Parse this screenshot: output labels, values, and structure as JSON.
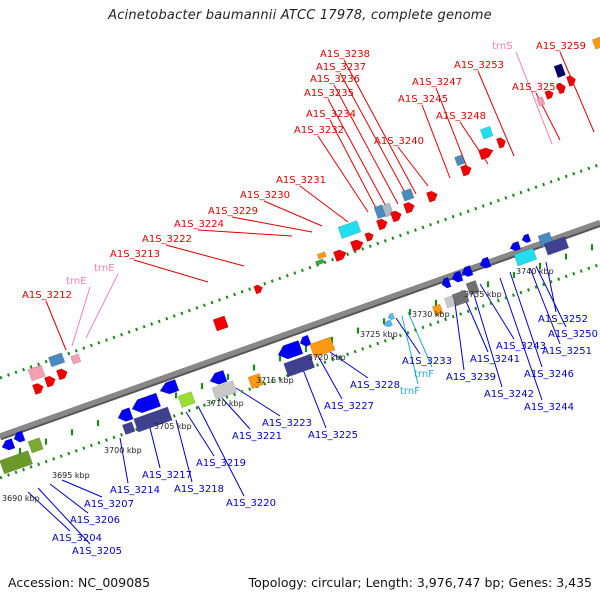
{
  "title": "Acinetobacter baumannii ATCC 17978, complete genome",
  "footer": {
    "accession": "Accession: NC_009085",
    "topology": "Topology: circular; Length: 3,976,747 bp; Genes: 3,435"
  },
  "colors": {
    "top_strand_label": "#e00000",
    "trna_label": "#f080b0",
    "bottom_label": "#0000cc",
    "trna_bottom_label": "#22aacc",
    "backbone": "#888888",
    "tick": "#1a8a1a"
  },
  "scale_labels": [
    {
      "text": "3690 kbp"
    },
    {
      "text": "3695 kbp"
    },
    {
      "text": "3700 kbp"
    },
    {
      "text": "3705 kbp"
    },
    {
      "text": "3710 kbp"
    },
    {
      "text": "3715 kbp"
    },
    {
      "text": "3720 kbp"
    },
    {
      "text": "3725 kbp"
    },
    {
      "text": "3730 kbp"
    },
    {
      "text": "3735 kbp"
    },
    {
      "text": "3740 kbp"
    }
  ],
  "top_labels": [
    {
      "text": "A1S_3212"
    },
    {
      "text": "trnE"
    },
    {
      "text": "trnE"
    },
    {
      "text": "A1S_3213"
    },
    {
      "text": "A1S_3222"
    },
    {
      "text": "A1S_3224"
    },
    {
      "text": "A1S_3229"
    },
    {
      "text": "A1S_3230"
    },
    {
      "text": "A1S_3231"
    },
    {
      "text": "A1S_3232"
    },
    {
      "text": "A1S_3234"
    },
    {
      "text": "A1S_3235"
    },
    {
      "text": "A1S_3236"
    },
    {
      "text": "A1S_3237"
    },
    {
      "text": "A1S_3238"
    },
    {
      "text": "A1S_3240"
    },
    {
      "text": "A1S_3245"
    },
    {
      "text": "A1S_3247"
    },
    {
      "text": "A1S_3248"
    },
    {
      "text": "A1S_3253"
    },
    {
      "text": "trnS"
    },
    {
      "text": "A1S_3256"
    },
    {
      "text": "A1S_3259"
    }
  ],
  "bottom_labels": [
    {
      "text": "A1S_3204"
    },
    {
      "text": "A1S_3205"
    },
    {
      "text": "A1S_3206"
    },
    {
      "text": "A1S_3207"
    },
    {
      "text": "A1S_3214"
    },
    {
      "text": "A1S_3217"
    },
    {
      "text": "A1S_3218"
    },
    {
      "text": "A1S_3219"
    },
    {
      "text": "A1S_3220"
    },
    {
      "text": "A1S_3221"
    },
    {
      "text": "A1S_3223"
    },
    {
      "text": "A1S_3225"
    },
    {
      "text": "A1S_3227"
    },
    {
      "text": "A1S_3228"
    },
    {
      "text": "trnF"
    },
    {
      "text": "trnF"
    },
    {
      "text": "A1S_3233"
    },
    {
      "text": "A1S_3239"
    },
    {
      "text": "A1S_3241"
    },
    {
      "text": "A1S_3242"
    },
    {
      "text": "A1S_3243"
    },
    {
      "text": "A1S_3244"
    },
    {
      "text": "A1S_3246"
    },
    {
      "text": "A1S_3250"
    },
    {
      "text": "A1S_3251"
    },
    {
      "text": "A1S_3252"
    }
  ]
}
